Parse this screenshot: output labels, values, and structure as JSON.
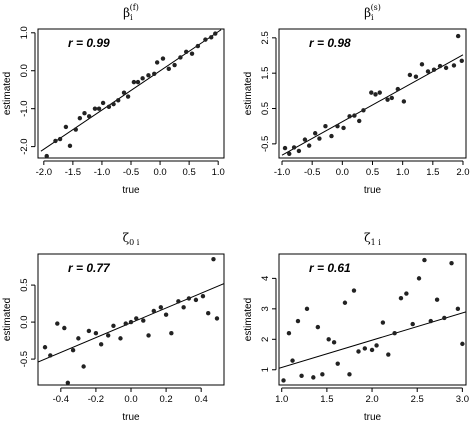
{
  "chart_data": [
    {
      "type": "scatter",
      "title": {
        "base": "β",
        "sub": "i",
        "sup": "(f)"
      },
      "xlabel": "true",
      "ylabel": "estimated",
      "annotation": "r = 0.99",
      "xlim": [
        -2.1,
        1.1
      ],
      "ylim": [
        -2.3,
        1.1
      ],
      "xticks": [
        -2.0,
        -1.5,
        -1.0,
        -0.5,
        0.0,
        0.5,
        1.0
      ],
      "yticks": [
        -2.0,
        -1.0,
        0.0,
        1.0
      ],
      "xtick_labels": [
        "-2.0",
        "-1.5",
        "-1.0",
        "-0.5",
        "0.0",
        "0.5",
        "1.0"
      ],
      "ytick_labels": [
        "-2.0",
        "-1.0",
        "0.0",
        "1.0"
      ],
      "fit_line": [
        [
          -2.05,
          -2.12
        ],
        [
          1.05,
          1.08
        ]
      ],
      "x": [
        -1.95,
        -1.8,
        -1.72,
        -1.62,
        -1.55,
        -1.45,
        -1.38,
        -1.3,
        -1.22,
        -1.12,
        -1.05,
        -0.98,
        -0.88,
        -0.8,
        -0.72,
        -0.62,
        -0.55,
        -0.45,
        -0.38,
        -0.3,
        -0.2,
        -0.1,
        -0.05,
        0.05,
        0.15,
        0.25,
        0.35,
        0.45,
        0.55,
        0.65,
        0.78,
        0.88,
        0.95
      ],
      "y": [
        -2.25,
        -1.85,
        -1.8,
        -1.48,
        -1.98,
        -1.55,
        -1.25,
        -1.12,
        -1.2,
        -1.0,
        -1.0,
        -0.85,
        -0.95,
        -0.88,
        -0.78,
        -0.58,
        -0.68,
        -0.3,
        -0.3,
        -0.2,
        -0.12,
        -0.08,
        0.22,
        0.32,
        0.05,
        0.15,
        0.35,
        0.5,
        0.45,
        0.65,
        0.82,
        0.88,
        0.98
      ]
    },
    {
      "type": "scatter",
      "title": {
        "base": "β",
        "sub": "i",
        "sup": "(s)"
      },
      "xlabel": "true",
      "ylabel": "estimated",
      "annotation": "r = 0.98",
      "xlim": [
        -1.05,
        2.05
      ],
      "ylim": [
        -0.9,
        2.75
      ],
      "xticks": [
        -1.0,
        -0.5,
        0.0,
        0.5,
        1.0,
        1.5,
        2.0
      ],
      "yticks": [
        -0.5,
        0.5,
        1.5,
        2.5
      ],
      "xtick_labels": [
        "-1.0",
        "-0.5",
        "0.0",
        "0.5",
        "1.0",
        "1.5",
        "2.0"
      ],
      "ytick_labels": [
        "-0.5",
        "0.5",
        "1.5",
        "2.5"
      ],
      "fit_line": [
        [
          -1.0,
          -0.82
        ],
        [
          2.0,
          2.02
        ]
      ],
      "x": [
        -0.95,
        -0.88,
        -0.8,
        -0.72,
        -0.62,
        -0.55,
        -0.45,
        -0.38,
        -0.28,
        -0.18,
        -0.08,
        0.02,
        0.12,
        0.2,
        0.28,
        0.35,
        0.48,
        0.55,
        0.62,
        0.75,
        0.82,
        0.92,
        1.02,
        1.12,
        1.22,
        1.32,
        1.42,
        1.52,
        1.62,
        1.72,
        1.85,
        1.92,
        1.98
      ],
      "y": [
        -0.62,
        -0.78,
        -0.6,
        -0.7,
        -0.38,
        -0.55,
        -0.2,
        -0.35,
        0.0,
        -0.28,
        0.0,
        -0.05,
        0.28,
        0.3,
        0.15,
        0.45,
        0.95,
        0.9,
        0.95,
        0.75,
        0.8,
        1.05,
        0.7,
        1.45,
        1.4,
        1.75,
        1.55,
        1.6,
        1.7,
        1.65,
        1.72,
        2.55,
        1.85
      ]
    },
    {
      "type": "scatter",
      "title": {
        "base": "ζ",
        "sub": "0 i",
        "sup": ""
      },
      "xlabel": "true",
      "ylabel": "estimated",
      "annotation": "r = 0.77",
      "xlim": [
        -0.53,
        0.53
      ],
      "ylim": [
        -0.85,
        0.92
      ],
      "xticks": [
        -0.4,
        -0.2,
        0.0,
        0.2,
        0.4
      ],
      "yticks": [
        -0.5,
        0.0,
        0.5
      ],
      "xtick_labels": [
        "-0.4",
        "-0.2",
        "0.0",
        "0.2",
        "0.4"
      ],
      "ytick_labels": [
        "-0.5",
        "0.0",
        "0.5"
      ],
      "fit_line": [
        [
          -0.53,
          -0.54
        ],
        [
          0.53,
          0.52
        ]
      ],
      "x": [
        -0.49,
        -0.46,
        -0.42,
        -0.38,
        -0.36,
        -0.33,
        -0.3,
        -0.27,
        -0.24,
        -0.2,
        -0.17,
        -0.13,
        -0.1,
        -0.06,
        -0.03,
        0.0,
        0.03,
        0.07,
        0.1,
        0.13,
        0.17,
        0.2,
        0.23,
        0.27,
        0.3,
        0.33,
        0.37,
        0.41,
        0.44,
        0.47,
        0.49
      ],
      "y": [
        -0.34,
        -0.45,
        -0.02,
        -0.08,
        -0.82,
        -0.38,
        -0.22,
        -0.6,
        -0.12,
        -0.15,
        -0.3,
        -0.18,
        -0.05,
        -0.22,
        -0.02,
        0.0,
        0.05,
        0.02,
        -0.18,
        0.15,
        0.2,
        0.1,
        -0.15,
        0.28,
        0.2,
        0.32,
        0.3,
        0.35,
        0.12,
        0.85,
        0.05
      ]
    },
    {
      "type": "scatter",
      "title": {
        "base": "ζ",
        "sub": "1 i",
        "sup": ""
      },
      "xlabel": "true",
      "ylabel": "estimated",
      "annotation": "r = 0.61",
      "xlim": [
        0.97,
        3.04
      ],
      "ylim": [
        0.5,
        4.8
      ],
      "xticks": [
        1.0,
        1.5,
        2.0,
        2.5,
        3.0
      ],
      "yticks": [
        1,
        2,
        3,
        4
      ],
      "xtick_labels": [
        "1.0",
        "1.5",
        "2.0",
        "2.5",
        "3.0"
      ],
      "ytick_labels": [
        "1",
        "2",
        "3",
        "4"
      ],
      "fit_line": [
        [
          0.97,
          1.05
        ],
        [
          3.04,
          2.9
        ]
      ],
      "x": [
        1.02,
        1.08,
        1.12,
        1.18,
        1.22,
        1.28,
        1.35,
        1.4,
        1.45,
        1.52,
        1.58,
        1.62,
        1.7,
        1.75,
        1.8,
        1.85,
        1.92,
        2.0,
        2.05,
        2.12,
        2.18,
        2.25,
        2.32,
        2.38,
        2.45,
        2.52,
        2.58,
        2.65,
        2.72,
        2.8,
        2.88,
        2.95,
        3.0
      ],
      "y": [
        0.65,
        2.2,
        1.3,
        2.6,
        0.8,
        3.0,
        0.75,
        2.4,
        0.85,
        2.0,
        1.9,
        1.2,
        3.2,
        0.85,
        3.6,
        1.6,
        1.7,
        1.65,
        1.8,
        2.55,
        1.5,
        2.2,
        3.35,
        3.5,
        2.5,
        4.0,
        4.6,
        2.6,
        3.3,
        2.7,
        4.5,
        3.0,
        1.85
      ]
    }
  ]
}
